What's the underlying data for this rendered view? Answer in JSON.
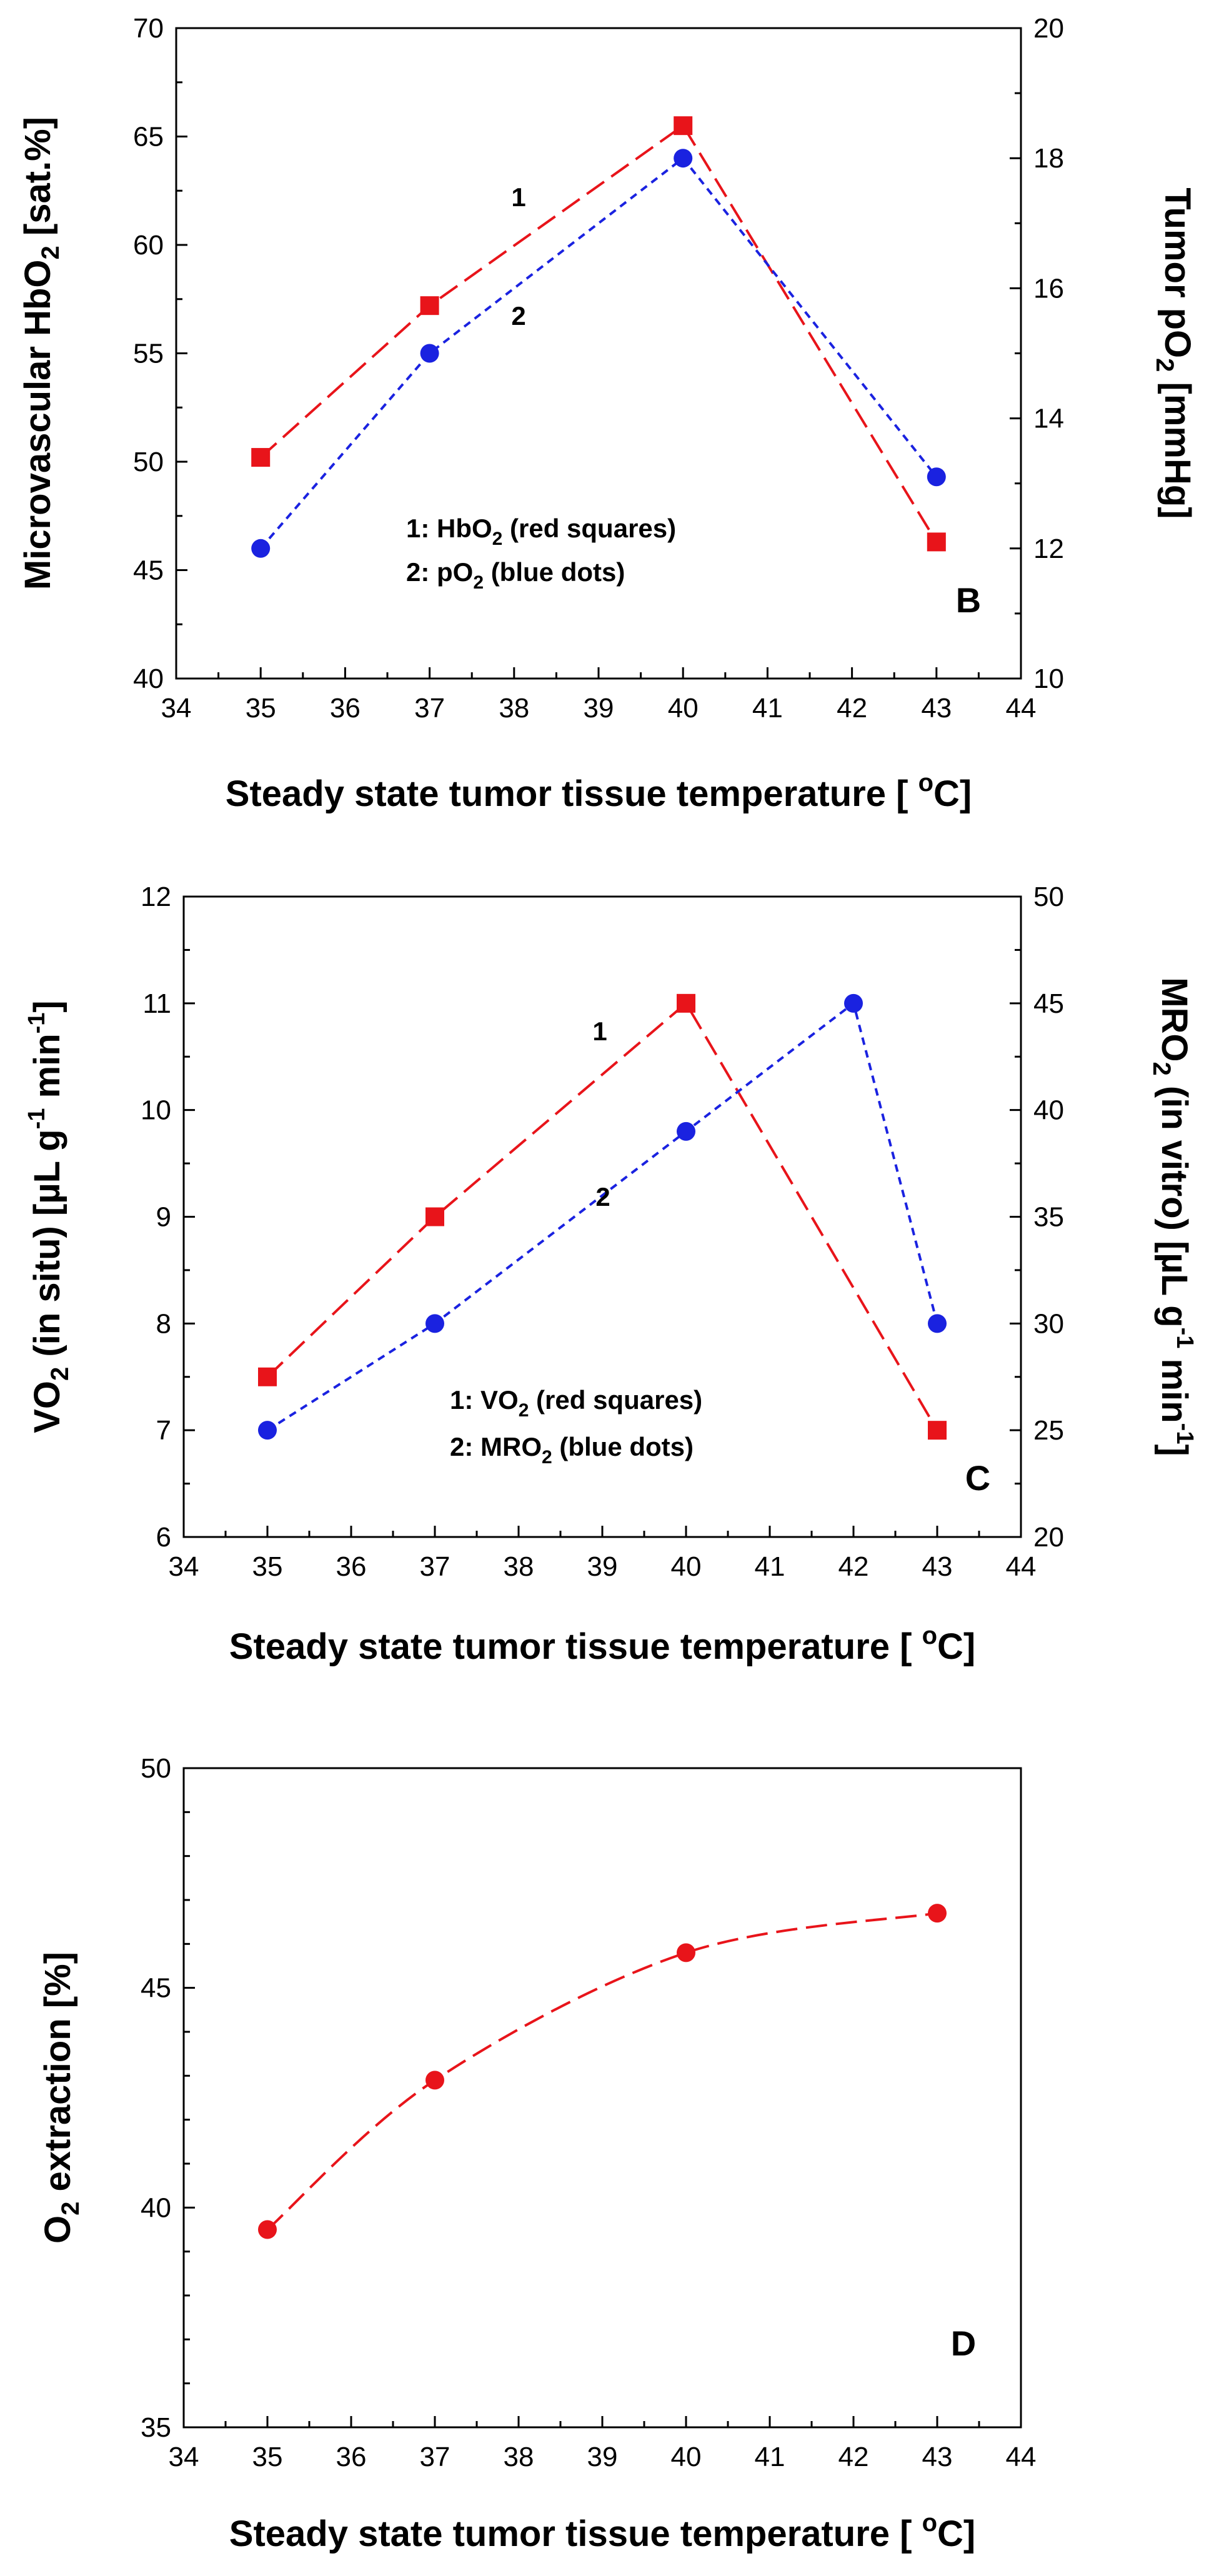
{
  "chart_data": [
    {
      "type": "line",
      "panel": "B",
      "xlabel": "Steady state tumor tissue temperature [ °C]",
      "xlabel_parts": {
        "main": "Steady state tumor tissue temperature [ ",
        "sup": "o",
        "end": "C]"
      },
      "ylabel": "Microvascular HbO2 [sat.%]",
      "ylabel_parts": {
        "main": "Microvascular HbO",
        "sub": "2",
        "end": " [sat.%]"
      },
      "y2label": "Tumor pO2 [mmHg]",
      "y2label_parts": {
        "main": "Tumor pO",
        "sub": "2",
        "end": " [mmHg]"
      },
      "xlim": [
        34,
        44
      ],
      "ylim": [
        40,
        70
      ],
      "y2lim": [
        10,
        20
      ],
      "xticks": [
        34,
        35,
        36,
        37,
        38,
        39,
        40,
        41,
        42,
        43,
        44
      ],
      "yticks": [
        40,
        45,
        50,
        55,
        60,
        65,
        70
      ],
      "y2ticks": [
        10,
        12,
        14,
        16,
        18,
        20
      ],
      "series": [
        {
          "name": "1",
          "axis": "left",
          "marker": "square",
          "color": "#e8141a",
          "line": "long-dash",
          "x": [
            35,
            37,
            40,
            43
          ],
          "values": [
            50.2,
            57.2,
            65.5,
            46.3
          ]
        },
        {
          "name": "2",
          "axis": "right",
          "marker": "circle",
          "color": "#1a22e0",
          "line": "short-dash",
          "x": [
            35,
            37,
            40,
            43
          ],
          "values": [
            12.0,
            15.0,
            18.0,
            13.1
          ]
        }
      ],
      "legend": [
        {
          "pre": "1: HbO",
          "sub": "2",
          "post": " (red squares)"
        },
        {
          "pre": "2: pO",
          "sub": "2",
          "post": " (blue dots)"
        }
      ],
      "series_labels": [
        "1",
        "2"
      ],
      "panel_label": "B"
    },
    {
      "type": "line",
      "panel": "C",
      "xlabel": "Steady state tumor tissue temperature [ °C]",
      "xlabel_parts": {
        "main": "Steady state tumor tissue temperature [ ",
        "sup": "o",
        "end": "C]"
      },
      "ylabel": "VO2 (in situ) [µL g-1 min-1]",
      "ylabel_parts": {
        "a": "VO",
        "sub": "2",
        "b": " (in situ) [µL g",
        "sup1": "-1",
        "c": " min",
        "sup2": "-1",
        "d": "]"
      },
      "y2label": "MRO2 (in vitro) [µL g-1 min-1]",
      "y2label_parts": {
        "a": "MRO",
        "sub": "2",
        "b": " (in vitro) [µL g",
        "sup1": "-1",
        "c": " min",
        "sup2": "-1",
        "d": "]"
      },
      "xlim": [
        34,
        44
      ],
      "ylim": [
        6,
        12
      ],
      "y2lim": [
        20,
        50
      ],
      "xticks": [
        34,
        35,
        36,
        37,
        38,
        39,
        40,
        41,
        42,
        43,
        44
      ],
      "yticks": [
        6,
        7,
        8,
        9,
        10,
        11,
        12
      ],
      "y2ticks": [
        20,
        25,
        30,
        35,
        40,
        45,
        50
      ],
      "series": [
        {
          "name": "1",
          "axis": "left",
          "marker": "square",
          "color": "#e8141a",
          "line": "long-dash",
          "x": [
            35,
            37,
            40,
            43
          ],
          "values": [
            7.5,
            9.0,
            11.0,
            7.0
          ]
        },
        {
          "name": "2",
          "axis": "left",
          "marker": "circle",
          "color": "#1a22e0",
          "line": "short-dash",
          "x": [
            35,
            37,
            40,
            42,
            43
          ],
          "values": [
            7.0,
            8.0,
            9.8,
            11.0,
            8.0
          ]
        }
      ],
      "legend": [
        {
          "pre": "1: VO",
          "sub": "2",
          "post": " (red squares)"
        },
        {
          "pre": "2: MRO",
          "sub": "2",
          "post": " (blue dots)"
        }
      ],
      "series_labels": [
        "1",
        "2"
      ],
      "panel_label": "C"
    },
    {
      "type": "line",
      "panel": "D",
      "xlabel": "Steady state tumor tissue temperature [ °C]",
      "xlabel_parts": {
        "main": "Steady state tumor tissue temperature [ ",
        "sup": "o",
        "end": "C]"
      },
      "ylabel": "O2 extraction [%]",
      "ylabel_parts": {
        "main": "O",
        "sub": "2",
        "end": " extraction [%]"
      },
      "xlim": [
        34,
        44
      ],
      "ylim": [
        35,
        50
      ],
      "xticks": [
        34,
        35,
        36,
        37,
        38,
        39,
        40,
        41,
        42,
        43,
        44
      ],
      "yticks": [
        35,
        40,
        45,
        50
      ],
      "series": [
        {
          "name": "O2 extraction",
          "axis": "left",
          "marker": "circle",
          "color": "#e8141a",
          "line": "long-dash-smooth",
          "x": [
            35,
            37,
            40,
            43
          ],
          "values": [
            39.5,
            42.9,
            45.8,
            46.7
          ]
        }
      ],
      "panel_label": "D"
    }
  ]
}
